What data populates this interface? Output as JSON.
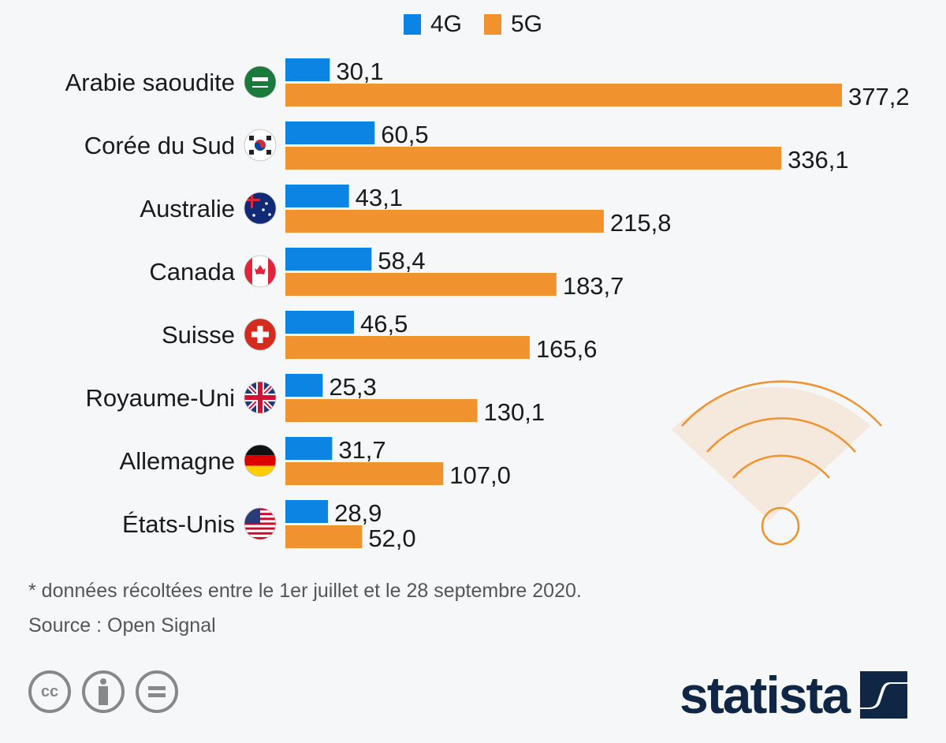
{
  "chart_data": {
    "type": "bar",
    "orientation": "horizontal",
    "title": "",
    "xlabel": "",
    "ylabel": "",
    "xlim": [
      0,
      377.2
    ],
    "grid": false,
    "legend_position": "top-center",
    "categories": [
      "Arabie saoudite",
      "Corée du Sud",
      "Australie",
      "Canada",
      "Suisse",
      "Royaume-Uni",
      "Allemagne",
      "États-Unis"
    ],
    "series": [
      {
        "name": "4G",
        "color": "#0b84e3",
        "values": [
          30.1,
          60.5,
          43.1,
          58.4,
          46.5,
          25.3,
          31.7,
          28.9
        ],
        "labels": [
          "30,1",
          "60,5",
          "43,1",
          "58,4",
          "46,5",
          "25,3",
          "31,7",
          "28,9"
        ]
      },
      {
        "name": "5G",
        "color": "#f0922e",
        "values": [
          377.2,
          336.1,
          215.8,
          183.7,
          165.6,
          130.1,
          107.0,
          52.0
        ],
        "labels": [
          "377,2",
          "336,1",
          "215,8",
          "183,7",
          "165,6",
          "130,1",
          "107,0",
          "52,0"
        ]
      }
    ],
    "flags": [
      "saudi-arabia-flag-icon",
      "south-korea-flag-icon",
      "australia-flag-icon",
      "canada-flag-icon",
      "switzerland-flag-icon",
      "uk-flag-icon",
      "germany-flag-icon",
      "usa-flag-icon"
    ]
  },
  "legend": [
    {
      "label": "4G",
      "color": "#0b84e3"
    },
    {
      "label": "5G",
      "color": "#f0922e"
    }
  ],
  "footnote": "* données récoltées entre le 1er juillet et le 28 septembre 2020.",
  "source": "Source : Open Signal",
  "license_icons": [
    "cc-icon",
    "attribution-icon",
    "no-derivatives-icon"
  ],
  "logo": "statista",
  "decoration": "wifi-signal-icon"
}
